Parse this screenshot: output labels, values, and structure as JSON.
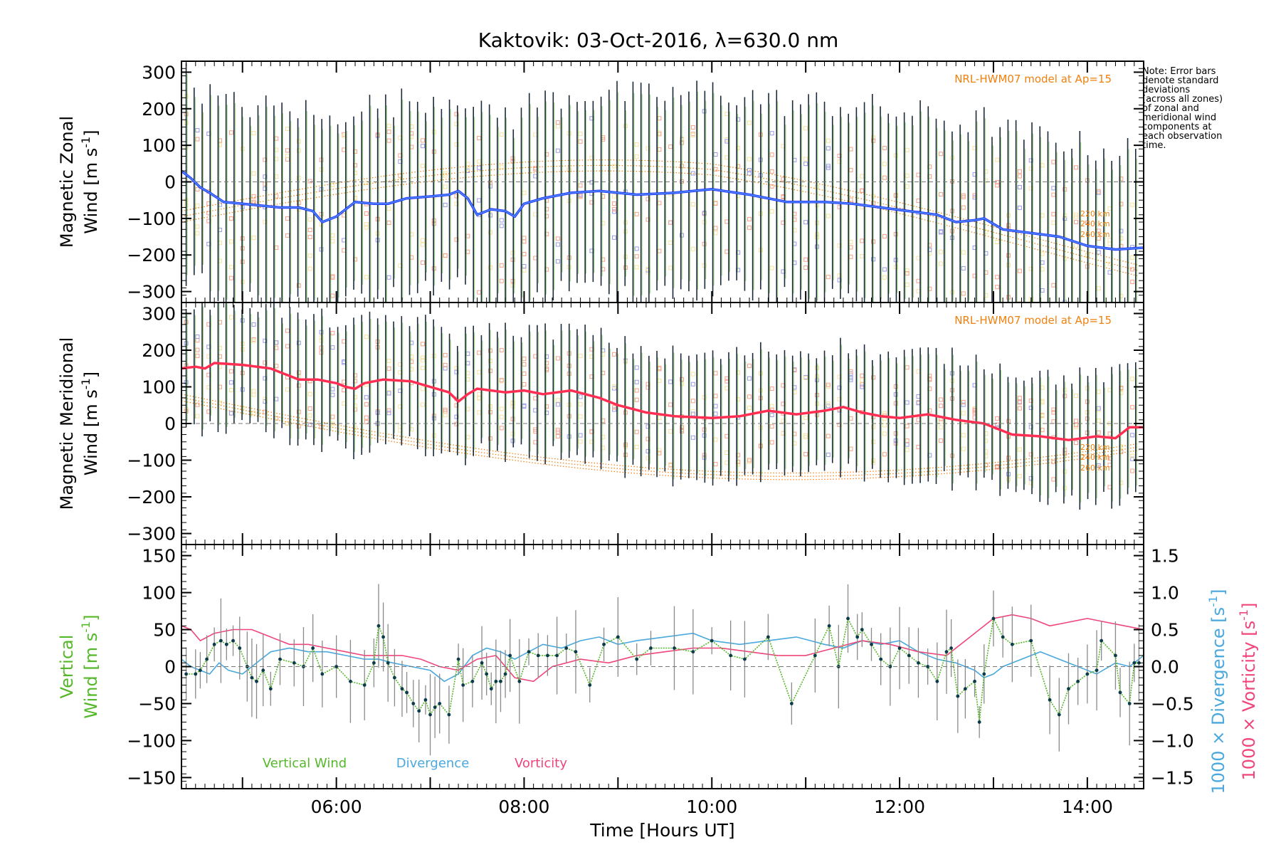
{
  "figure": {
    "title": "Kaktovik: 03-Oct-2016, λ=630.0 nm",
    "note": "Note: Error bars\ndenote standard\ndeviations\n(across all zones)\nof zonal and\nmeridional wind\ncomponents at\neach observation\ntime.",
    "colors": {
      "zonal_mean": "#2433ff",
      "zonal_mean_light": "#5aa9ef",
      "meridional_mean": "#ff2e52",
      "model": "#f08010",
      "error_bar": "#1a2a3a",
      "vertical_wind": "#55b82a",
      "divergence": "#49a8dd",
      "vorticity": "#f0457a",
      "scatter_salmon": "#f7a08a",
      "scatter_yellow": "#f7e2a0",
      "scatter_blue": "#9a9ae8"
    }
  },
  "chart_data": [
    {
      "type": "line",
      "panel": "zonal",
      "ylabel_line1": "Magnetic Zonal",
      "ylabel_line2": "Wind [m s",
      "ylabel_sup": "-1",
      "ylabel_close": "]",
      "ylim": [
        -330,
        330
      ],
      "yticks": [
        -300,
        -200,
        -100,
        0,
        100,
        200,
        300
      ],
      "xlim": [
        4.35,
        14.6
      ],
      "model_label": "NRL-HWM07 model at Ap=15",
      "model_altitudes": [
        "220 km",
        "240 km",
        "260 km"
      ],
      "series": [
        {
          "role": "mean",
          "x": [
            4.35,
            4.45,
            4.55,
            4.65,
            4.8,
            5.0,
            5.2,
            5.4,
            5.6,
            5.75,
            5.85,
            6.0,
            6.2,
            6.4,
            6.55,
            6.75,
            7.0,
            7.2,
            7.3,
            7.4,
            7.5,
            7.65,
            7.8,
            7.9,
            8.0,
            8.2,
            8.5,
            8.8,
            9.2,
            9.6,
            10.0,
            10.4,
            10.8,
            11.2,
            11.5,
            11.8,
            12.1,
            12.4,
            12.6,
            12.8,
            12.9,
            13.1,
            13.4,
            13.7,
            14.0,
            14.3,
            14.6
          ],
          "y": [
            30,
            10,
            -15,
            -30,
            -55,
            -60,
            -65,
            -70,
            -70,
            -80,
            -110,
            -95,
            -55,
            -60,
            -60,
            -45,
            -40,
            -35,
            -25,
            -45,
            -90,
            -75,
            -80,
            -95,
            -60,
            -45,
            -30,
            -25,
            -35,
            -30,
            -20,
            -35,
            -55,
            -55,
            -60,
            -70,
            -80,
            -90,
            -110,
            -105,
            -100,
            -130,
            -140,
            -150,
            -175,
            -185,
            -180
          ]
        }
      ],
      "error_bar_half_width": 270
    },
    {
      "type": "line",
      "panel": "meridional",
      "ylabel_line1": "Magnetic Meridional",
      "ylabel_line2": "Wind [m s",
      "ylabel_sup": "-1",
      "ylabel_close": "]",
      "ylim": [
        -330,
        330
      ],
      "yticks": [
        -300,
        -200,
        -100,
        0,
        100,
        200,
        300
      ],
      "xlim": [
        4.35,
        14.6
      ],
      "model_label": "NRL-HWM07 model at Ap=15",
      "model_altitudes": [
        "220 km",
        "240 km",
        "260 km"
      ],
      "series": [
        {
          "role": "mean",
          "x": [
            4.35,
            4.5,
            4.6,
            4.7,
            5.0,
            5.3,
            5.6,
            5.8,
            6.0,
            6.1,
            6.2,
            6.3,
            6.5,
            6.8,
            7.0,
            7.2,
            7.3,
            7.4,
            7.5,
            7.8,
            8.0,
            8.2,
            8.5,
            8.8,
            9.0,
            9.3,
            9.6,
            10.0,
            10.3,
            10.6,
            10.9,
            11.2,
            11.4,
            11.6,
            11.8,
            12.0,
            12.3,
            12.6,
            12.9,
            13.2,
            13.5,
            13.8,
            14.1,
            14.3,
            14.45,
            14.6
          ],
          "y": [
            150,
            155,
            150,
            165,
            160,
            150,
            120,
            120,
            110,
            100,
            95,
            110,
            120,
            115,
            100,
            85,
            60,
            80,
            95,
            85,
            90,
            80,
            90,
            70,
            50,
            30,
            20,
            15,
            20,
            35,
            25,
            35,
            45,
            30,
            20,
            15,
            25,
            10,
            0,
            -30,
            -35,
            -45,
            -35,
            -40,
            -10,
            -10
          ]
        }
      ],
      "error_bar_half_width": 170
    },
    {
      "type": "line",
      "panel": "vertical",
      "ylabel_line1": "Vertical",
      "ylabel_line2": "Wind [m s",
      "ylabel_sup": "-1",
      "ylabel_close": "]",
      "ylim": [
        -165,
        165
      ],
      "yticks": [
        -150,
        -100,
        -50,
        0,
        50,
        100,
        150
      ],
      "y2lim": [
        -1.65,
        1.65
      ],
      "y2ticks": [
        -1.5,
        -1.0,
        -0.5,
        0.0,
        0.5,
        1.0,
        1.5
      ],
      "y2label_div": "1000 × Divergence [s",
      "y2label_vor": "1000 × Vorticity [s",
      "y2label_sup": "-1",
      "y2label_close": "]",
      "xlim": [
        4.35,
        14.6
      ],
      "xlabel": "Time [Hours UT]",
      "xticks": [
        6,
        8,
        10,
        12,
        14
      ],
      "xticklabels": [
        "06:00",
        "08:00",
        "10:00",
        "12:00",
        "14:00"
      ],
      "legend": [
        "Vertical Wind",
        "Divergence",
        "Vorticity"
      ],
      "series": [
        {
          "name": "Vertical Wind",
          "axis": "left",
          "x": [
            4.4,
            4.5,
            4.55,
            4.62,
            4.7,
            4.77,
            4.83,
            4.9,
            4.97,
            5.05,
            5.1,
            5.15,
            5.22,
            5.3,
            5.4,
            5.55,
            5.65,
            5.75,
            5.85,
            6.0,
            6.15,
            6.3,
            6.4,
            6.45,
            6.5,
            6.55,
            6.62,
            6.7,
            6.75,
            6.82,
            6.88,
            6.95,
            7.0,
            7.05,
            7.1,
            7.2,
            7.3,
            7.35,
            7.45,
            7.55,
            7.6,
            7.65,
            7.7,
            7.75,
            7.8,
            7.85,
            7.95,
            8.05,
            8.15,
            8.25,
            8.35,
            8.45,
            8.55,
            8.7,
            8.85,
            9.0,
            9.2,
            9.35,
            9.6,
            9.8,
            10.0,
            10.2,
            10.35,
            10.6,
            10.85,
            11.1,
            11.25,
            11.35,
            11.45,
            11.55,
            11.6,
            11.7,
            11.8,
            11.9,
            12.0,
            12.1,
            12.2,
            12.3,
            12.4,
            12.5,
            12.55,
            12.62,
            12.7,
            12.8,
            12.85,
            12.9,
            13.0,
            13.1,
            13.2,
            13.4,
            13.6,
            13.7,
            13.8,
            13.9,
            14.0,
            14.1,
            14.15,
            14.3,
            14.35,
            14.45,
            14.5,
            14.55
          ],
          "y": [
            -10,
            -10,
            -5,
            10,
            30,
            35,
            30,
            35,
            25,
            0,
            -15,
            -20,
            -5,
            -30,
            10,
            5,
            0,
            25,
            -10,
            0,
            -20,
            -25,
            5,
            55,
            40,
            5,
            -15,
            -30,
            -35,
            -50,
            -60,
            -45,
            -65,
            -55,
            -50,
            -65,
            10,
            -25,
            -20,
            5,
            -10,
            -30,
            -20,
            -20,
            -10,
            15,
            -20,
            20,
            15,
            15,
            15,
            25,
            20,
            -25,
            30,
            40,
            10,
            25,
            25,
            20,
            35,
            15,
            10,
            40,
            -50,
            15,
            55,
            0,
            65,
            40,
            50,
            30,
            10,
            0,
            25,
            15,
            5,
            0,
            -20,
            20,
            25,
            -40,
            -30,
            -20,
            -75,
            -10,
            65,
            40,
            30,
            35,
            -45,
            -65,
            -30,
            -20,
            -10,
            -5,
            35,
            15,
            -35,
            -50,
            5,
            5
          ]
        },
        {
          "name": "Divergence",
          "axis": "right",
          "x": [
            4.35,
            4.45,
            4.55,
            4.65,
            4.75,
            4.85,
            5.0,
            5.15,
            5.3,
            5.5,
            5.7,
            5.9,
            6.1,
            6.3,
            6.45,
            6.6,
            6.8,
            7.0,
            7.15,
            7.3,
            7.45,
            7.6,
            7.75,
            7.9,
            8.05,
            8.2,
            8.4,
            8.6,
            8.8,
            9.0,
            9.2,
            9.5,
            9.8,
            10.0,
            10.3,
            10.6,
            10.9,
            11.2,
            11.4,
            11.6,
            11.8,
            12.0,
            12.2,
            12.4,
            12.6,
            12.8,
            12.9,
            13.0,
            13.1,
            13.3,
            13.5,
            13.7,
            13.9,
            14.1,
            14.3,
            14.45,
            14.6
          ],
          "y": [
            0.1,
            0.0,
            -0.05,
            -0.1,
            0.05,
            -0.05,
            -0.1,
            0.05,
            0.2,
            0.25,
            0.2,
            0.2,
            0.15,
            0.1,
            0.1,
            0.05,
            0.0,
            -0.05,
            -0.2,
            -0.1,
            0.15,
            0.25,
            0.2,
            0.1,
            0.2,
            0.3,
            0.25,
            0.35,
            0.4,
            0.3,
            0.35,
            0.4,
            0.45,
            0.35,
            0.3,
            0.35,
            0.4,
            0.3,
            0.25,
            0.35,
            0.3,
            0.35,
            0.2,
            0.1,
            0.05,
            -0.05,
            -0.15,
            -0.1,
            0.0,
            0.1,
            0.2,
            0.1,
            0.0,
            -0.1,
            0.05,
            0.0,
            0.15
          ]
        },
        {
          "name": "Vorticity",
          "axis": "right",
          "x": [
            4.35,
            4.45,
            4.55,
            4.7,
            4.9,
            5.1,
            5.3,
            5.5,
            5.7,
            5.9,
            6.1,
            6.3,
            6.5,
            6.7,
            6.9,
            7.1,
            7.3,
            7.5,
            7.7,
            7.9,
            8.1,
            8.3,
            8.6,
            8.9,
            9.2,
            9.5,
            9.8,
            10.1,
            10.4,
            10.7,
            11.0,
            11.3,
            11.6,
            11.9,
            12.2,
            12.5,
            12.8,
            13.0,
            13.2,
            13.4,
            13.6,
            13.8,
            14.0,
            14.2,
            14.4,
            14.6
          ],
          "y": [
            0.55,
            0.5,
            0.35,
            0.45,
            0.5,
            0.5,
            0.4,
            0.3,
            0.3,
            0.25,
            0.2,
            0.15,
            0.15,
            0.15,
            0.1,
            0.0,
            -0.05,
            0.1,
            0.15,
            -0.15,
            -0.2,
            0.0,
            0.1,
            0.05,
            0.15,
            0.2,
            0.25,
            0.25,
            0.2,
            0.15,
            0.15,
            0.25,
            0.35,
            0.3,
            0.2,
            0.15,
            0.45,
            0.65,
            0.7,
            0.65,
            0.55,
            0.6,
            0.65,
            0.6,
            0.55,
            0.5
          ]
        }
      ]
    }
  ]
}
